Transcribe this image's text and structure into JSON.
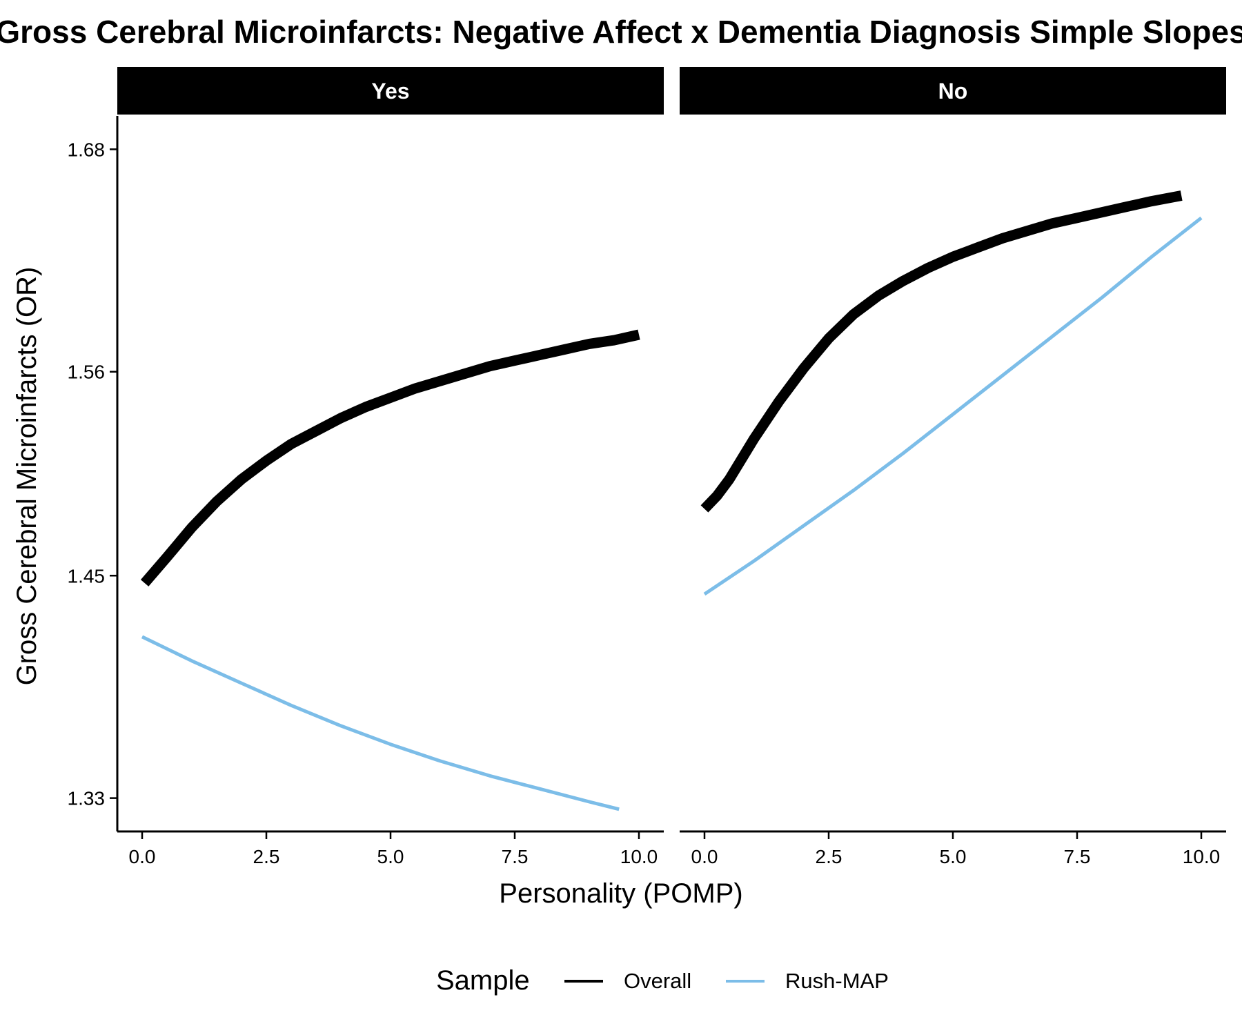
{
  "chart_data": {
    "type": "line",
    "title": "Gross Cerebral Microinfarcts: Negative Affect x Dementia Diagnosis Simple Slopes",
    "xlabel": "Personality (POMP)",
    "ylabel": "Gross Cerebral Microinfarcts (OR)",
    "xlim": [
      -0.5,
      10.5
    ],
    "ylim": [
      1.312,
      1.698
    ],
    "x_ticks": [
      0,
      2.5,
      5,
      7.5,
      10
    ],
    "x_tick_labels": [
      "0.0",
      "2.5",
      "5.0",
      "7.5",
      "10.0"
    ],
    "y_ticks": [
      1.33,
      1.45,
      1.56,
      1.68
    ],
    "y_tick_labels": [
      "1.33",
      "1.45",
      "1.56",
      "1.68"
    ],
    "grid": false,
    "legend": {
      "title": "Sample",
      "position": "bottom",
      "entries": [
        {
          "label": "Overall",
          "color": "#000000"
        },
        {
          "label": "Rush-MAP",
          "color": "#7cbde8"
        }
      ]
    },
    "panels": [
      {
        "strip": "Yes",
        "series": [
          {
            "name": "Overall",
            "color": "#000000",
            "x": [
              0.05,
              0.5,
              1.0,
              1.5,
              2.0,
              2.5,
              3.0,
              3.5,
              4.0,
              4.5,
              5.0,
              5.5,
              6.0,
              6.5,
              7.0,
              7.5,
              8.0,
              8.5,
              9.0,
              9.5,
              10.0
            ],
            "y": [
              1.446,
              1.46,
              1.476,
              1.49,
              1.502,
              1.512,
              1.521,
              1.528,
              1.535,
              1.541,
              1.546,
              1.551,
              1.555,
              1.559,
              1.563,
              1.566,
              1.569,
              1.572,
              1.575,
              1.577,
              1.58
            ]
          },
          {
            "name": "Rush-MAP",
            "color": "#7cbde8",
            "x": [
              0.0,
              1.0,
              2.0,
              3.0,
              4.0,
              5.0,
              6.0,
              7.0,
              8.0,
              9.0,
              9.6
            ],
            "y": [
              1.417,
              1.404,
              1.392,
              1.38,
              1.369,
              1.359,
              1.35,
              1.342,
              1.335,
              1.328,
              1.324
            ]
          }
        ]
      },
      {
        "strip": "No",
        "series": [
          {
            "name": "Overall",
            "color": "#000000",
            "x": [
              0.0,
              0.25,
              0.5,
              1.0,
              1.5,
              2.0,
              2.5,
              3.0,
              3.5,
              4.0,
              4.5,
              5.0,
              5.5,
              6.0,
              6.5,
              7.0,
              7.5,
              8.0,
              8.5,
              9.0,
              9.6
            ],
            "y": [
              1.486,
              1.493,
              1.502,
              1.524,
              1.544,
              1.562,
              1.578,
              1.591,
              1.601,
              1.609,
              1.616,
              1.622,
              1.627,
              1.632,
              1.636,
              1.64,
              1.643,
              1.646,
              1.649,
              1.652,
              1.655
            ]
          },
          {
            "name": "Rush-MAP",
            "color": "#7cbde8",
            "x": [
              0.0,
              1.0,
              2.0,
              3.0,
              4.0,
              5.0,
              6.0,
              7.0,
              8.0,
              9.0,
              10.0
            ],
            "y": [
              1.44,
              1.458,
              1.477,
              1.496,
              1.516,
              1.537,
              1.558,
              1.579,
              1.6,
              1.622,
              1.643
            ]
          }
        ]
      }
    ]
  }
}
